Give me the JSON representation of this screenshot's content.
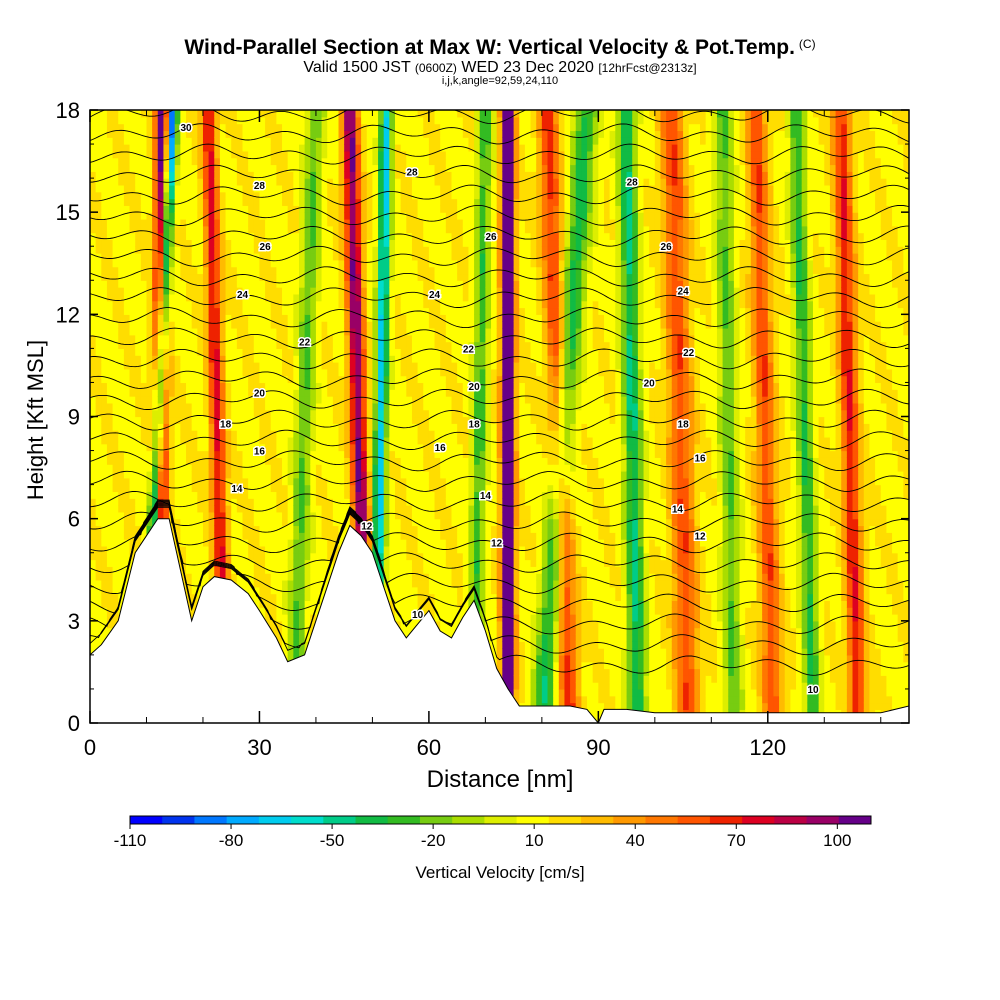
{
  "header": {
    "title": "Wind-Parallel Section at Max W: Vertical Velocity & Pot.Temp.",
    "copyright": "(C)",
    "valid_prefix": "Valid 1500 JST",
    "valid_utc": "(0600Z)",
    "valid_date": "WED 23 Dec 2020",
    "forecast": "[12hrFcst@2313z]",
    "grid_info": "i,j,k,angle=92,59,24,110"
  },
  "chart_data": {
    "type": "heatmap",
    "title": "Wind-Parallel Section at Max W: Vertical Velocity & Pot.Temp.",
    "xlabel": "Distance [nm]",
    "ylabel": "Height [Kft MSL]",
    "xlim": [
      0,
      145
    ],
    "ylim": [
      0,
      18
    ],
    "xticks": [
      0,
      30,
      60,
      90,
      120
    ],
    "yticks": [
      0,
      3,
      6,
      9,
      12,
      15,
      18
    ],
    "colorbar": {
      "label": "Vertical Velocity [cm/s]",
      "range": [
        -110,
        110
      ],
      "tick_values": [
        -110,
        -80,
        -50,
        -20,
        10,
        40,
        70,
        100
      ],
      "tick_labels": [
        "-110",
        "-80",
        "-50",
        "-20",
        "10",
        "40",
        "70",
        "100"
      ],
      "colors": [
        "#0000ff",
        "#0033ee",
        "#0077ff",
        "#00aaff",
        "#00ccee",
        "#00ddcc",
        "#00cc88",
        "#11bb44",
        "#33bb22",
        "#77cc11",
        "#aadd00",
        "#ddee00",
        "#ffff00",
        "#ffdd00",
        "#ffbb00",
        "#ff9900",
        "#ff7700",
        "#ff5500",
        "#ee2200",
        "#dd0022",
        "#bb0044",
        "#990066",
        "#660088"
      ]
    },
    "terrain_kft": [
      [
        0,
        2
      ],
      [
        2,
        2.3
      ],
      [
        5,
        3
      ],
      [
        8,
        5
      ],
      [
        10,
        5.5
      ],
      [
        12,
        6
      ],
      [
        14,
        6
      ],
      [
        16,
        4.5
      ],
      [
        18,
        3
      ],
      [
        20,
        4
      ],
      [
        22,
        4.3
      ],
      [
        25,
        4.2
      ],
      [
        28,
        3.8
      ],
      [
        30,
        3.3
      ],
      [
        33,
        2.5
      ],
      [
        35,
        1.8
      ],
      [
        38,
        2
      ],
      [
        40,
        3
      ],
      [
        42,
        4
      ],
      [
        44,
        5
      ],
      [
        46,
        5.8
      ],
      [
        48,
        5.5
      ],
      [
        50,
        5
      ],
      [
        52,
        4
      ],
      [
        54,
        3
      ],
      [
        56,
        2.5
      ],
      [
        58,
        2.9
      ],
      [
        60,
        3.3
      ],
      [
        62,
        2.7
      ],
      [
        64,
        2.5
      ],
      [
        66,
        3.1
      ],
      [
        68,
        3.6
      ],
      [
        70,
        2.7
      ],
      [
        72,
        1.6
      ],
      [
        74,
        1
      ],
      [
        76,
        0.5
      ],
      [
        80,
        0.5
      ],
      [
        85,
        0.5
      ],
      [
        88,
        0.4
      ],
      [
        90,
        0
      ],
      [
        91,
        0.4
      ],
      [
        95,
        0.4
      ],
      [
        100,
        0.3
      ],
      [
        110,
        0.3
      ],
      [
        120,
        0.3
      ],
      [
        130,
        0.3
      ],
      [
        140,
        0.3
      ],
      [
        145,
        0.5
      ]
    ],
    "updraft_bands": [
      {
        "x_base": 12,
        "x_top": 13,
        "amp": 1.0,
        "width": 1.3
      },
      {
        "x_base": 24,
        "x_top": 21,
        "amp": 0.6,
        "width": 1.3
      },
      {
        "x_base": 49,
        "x_top": 46,
        "amp": 0.85,
        "width": 1.4
      },
      {
        "x_base": 74,
        "x_top": 74,
        "amp": 1.25,
        "width": 1.1
      },
      {
        "x_base": 85,
        "x_top": 81,
        "amp": 0.5,
        "width": 1.8
      },
      {
        "x_base": 106,
        "x_top": 103,
        "amp": 0.45,
        "width": 2.2
      },
      {
        "x_base": 121,
        "x_top": 118,
        "amp": 0.45,
        "width": 1.8
      },
      {
        "x_base": 136,
        "x_top": 133,
        "amp": 0.55,
        "width": 1.6
      }
    ],
    "downdraft_bands": [
      {
        "x_base": 10,
        "x_top": 14.5,
        "amp": -1.15,
        "width": 1.0
      },
      {
        "x_base": 36,
        "x_top": 40,
        "amp": -0.35,
        "width": 1.6
      },
      {
        "x_base": 50.5,
        "x_top": 52.5,
        "amp": -0.75,
        "width": 1.1
      },
      {
        "x_base": 68,
        "x_top": 70,
        "amp": -0.4,
        "width": 1.3
      },
      {
        "x_base": 80,
        "x_top": 88,
        "amp": -0.5,
        "width": 2.0
      },
      {
        "x_base": 97,
        "x_top": 95,
        "amp": -0.55,
        "width": 1.6
      },
      {
        "x_base": 114,
        "x_top": 112,
        "amp": -0.35,
        "width": 1.6
      },
      {
        "x_base": 128,
        "x_top": 125,
        "amp": -0.45,
        "width": 1.4
      }
    ],
    "theta_contour_labels": [
      {
        "value": "30",
        "x": 17,
        "y": 17.5
      },
      {
        "value": "28",
        "x": 30,
        "y": 15.8
      },
      {
        "value": "28",
        "x": 57,
        "y": 16.2
      },
      {
        "value": "28",
        "x": 96,
        "y": 15.9
      },
      {
        "value": "26",
        "x": 31,
        "y": 14.0
      },
      {
        "value": "26",
        "x": 71,
        "y": 14.3
      },
      {
        "value": "26",
        "x": 102,
        "y": 14.0
      },
      {
        "value": "24",
        "x": 27,
        "y": 12.6
      },
      {
        "value": "24",
        "x": 61,
        "y": 12.6
      },
      {
        "value": "24",
        "x": 105,
        "y": 12.7
      },
      {
        "value": "22",
        "x": 38,
        "y": 11.2
      },
      {
        "value": "22",
        "x": 67,
        "y": 11.0
      },
      {
        "value": "22",
        "x": 106,
        "y": 10.9
      },
      {
        "value": "20",
        "x": 30,
        "y": 9.7
      },
      {
        "value": "20",
        "x": 68,
        "y": 9.9
      },
      {
        "value": "20",
        "x": 99,
        "y": 10.0
      },
      {
        "value": "18",
        "x": 24,
        "y": 8.8
      },
      {
        "value": "18",
        "x": 68,
        "y": 8.8
      },
      {
        "value": "18",
        "x": 105,
        "y": 8.8
      },
      {
        "value": "16",
        "x": 30,
        "y": 8.0
      },
      {
        "value": "16",
        "x": 62,
        "y": 8.1
      },
      {
        "value": "16",
        "x": 108,
        "y": 7.8
      },
      {
        "value": "14",
        "x": 26,
        "y": 6.9
      },
      {
        "value": "14",
        "x": 70,
        "y": 6.7
      },
      {
        "value": "14",
        "x": 104,
        "y": 6.3
      },
      {
        "value": "12",
        "x": 49,
        "y": 5.8
      },
      {
        "value": "12",
        "x": 72,
        "y": 5.3
      },
      {
        "value": "12",
        "x": 108,
        "y": 5.5
      },
      {
        "value": "10",
        "x": 58,
        "y": 3.2
      },
      {
        "value": "10",
        "x": 128,
        "y": 1.0
      }
    ]
  }
}
